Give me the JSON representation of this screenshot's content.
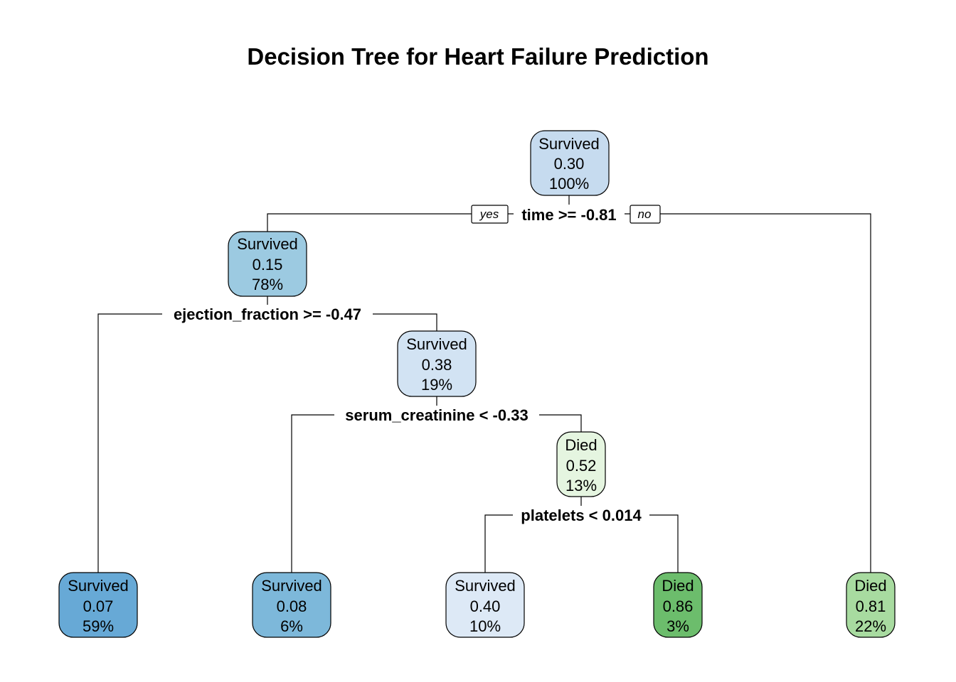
{
  "title": "Decision Tree for Heart Failure Prediction",
  "edge_labels": {
    "yes": "yes",
    "no": "no"
  },
  "colors": {
    "survived_scale": [
      "#67a9d6",
      "#7db8da",
      "#9ccae1",
      "#c6dbef",
      "#d2e3f3",
      "#dde9f6"
    ],
    "died_scale": [
      "#e5f5e0",
      "#a8dba0",
      "#6cbd6c"
    ]
  },
  "nodes": [
    {
      "id": "n1",
      "class": "Survived",
      "prob": "0.30",
      "pct": "100%",
      "color": "#c6dbef"
    },
    {
      "id": "n2",
      "class": "Survived",
      "prob": "0.15",
      "pct": "78%",
      "color": "#9ccae1"
    },
    {
      "id": "n3",
      "class": "Survived",
      "prob": "0.38",
      "pct": "19%",
      "color": "#d2e3f3"
    },
    {
      "id": "n4",
      "class": "Died",
      "prob": "0.52",
      "pct": "13%",
      "color": "#e5f5e0"
    },
    {
      "id": "leaf1",
      "class": "Survived",
      "prob": "0.07",
      "pct": "59%",
      "color": "#67a9d6"
    },
    {
      "id": "leaf2",
      "class": "Survived",
      "prob": "0.08",
      "pct": "6%",
      "color": "#7db8da"
    },
    {
      "id": "leaf3",
      "class": "Survived",
      "prob": "0.40",
      "pct": "10%",
      "color": "#dde9f6"
    },
    {
      "id": "leaf4",
      "class": "Died",
      "prob": "0.86",
      "pct": "3%",
      "color": "#6cbd6c"
    },
    {
      "id": "leaf5",
      "class": "Died",
      "prob": "0.81",
      "pct": "22%",
      "color": "#a8dba0"
    }
  ],
  "splits": [
    {
      "id": "s1",
      "label": "time >= -0.81"
    },
    {
      "id": "s2",
      "label": "ejection_fraction >= -0.47"
    },
    {
      "id": "s3",
      "label": "serum_creatinine < -0.33"
    },
    {
      "id": "s4",
      "label": "platelets < 0.014"
    }
  ]
}
